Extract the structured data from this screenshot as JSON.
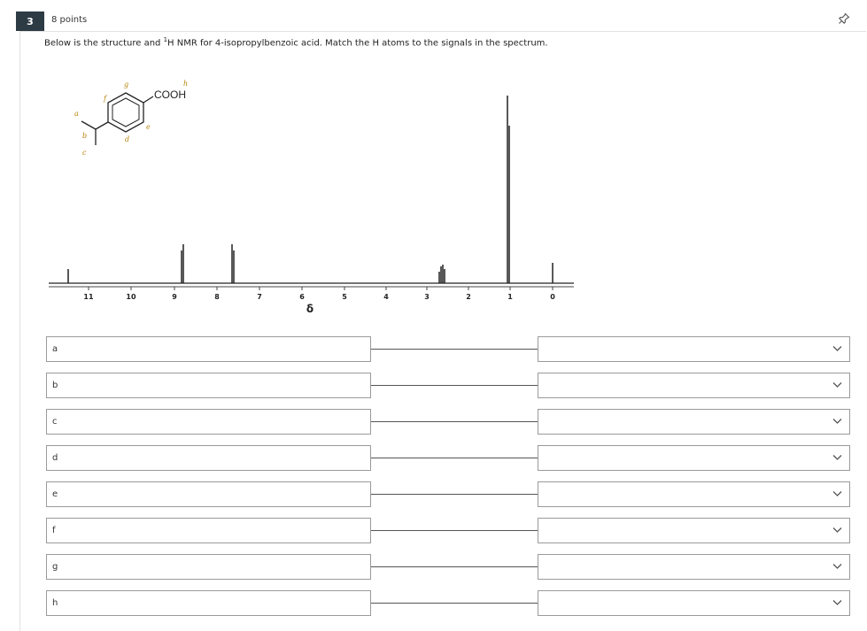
{
  "question": {
    "number": "3",
    "points": "8 points",
    "prompt_before": "Below is the structure and ",
    "prompt_sup": "1",
    "prompt_after": "H NMR for 4-isopropylbenzoic acid. Match the H atoms to the signals in the spectrum."
  },
  "structure": {
    "group_label": "COOH",
    "letters": [
      "a",
      "b",
      "c",
      "d",
      "e",
      "f",
      "g",
      "h"
    ]
  },
  "spectrum": {
    "axis_label": "δ",
    "ticks": [
      "11",
      "10",
      "9",
      "8",
      "7",
      "6",
      "5",
      "4",
      "3",
      "2",
      "1",
      "0"
    ]
  },
  "matching": {
    "rows": [
      {
        "label": "a",
        "selected": ""
      },
      {
        "label": "b",
        "selected": ""
      },
      {
        "label": "c",
        "selected": ""
      },
      {
        "label": "d",
        "selected": ""
      },
      {
        "label": "e",
        "selected": ""
      },
      {
        "label": "f",
        "selected": ""
      },
      {
        "label": "g",
        "selected": ""
      },
      {
        "label": "h",
        "selected": ""
      }
    ]
  },
  "icons": {
    "pin": "pin-icon",
    "chevron": "chevron-down-icon"
  }
}
